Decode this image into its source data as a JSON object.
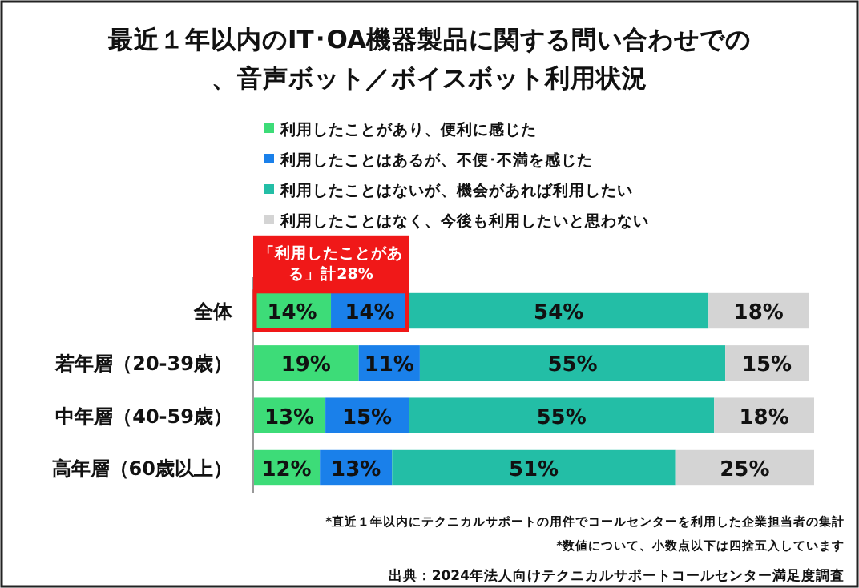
{
  "chart_data": {
    "type": "bar",
    "orientation": "horizontal",
    "stacked": true,
    "title": "最近１年以内のIT･OA機器製品に関する問い合わせでの、音声ボット／ボイスボット利用状況",
    "categories": [
      "全体",
      "若年層（20-39歳）",
      "中年層（40-59歳）",
      "高年層（60歳以上）"
    ],
    "series": [
      {
        "name": "利用したことがあり、便利に感じた",
        "color": "#3ddc78",
        "values": [
          14,
          19,
          13,
          12
        ],
        "value_labels": [
          "14%",
          "19%",
          "13%",
          "12%"
        ]
      },
      {
        "name": "利用したことはあるが、不便･不満を感じた",
        "color": "#1a80ea",
        "values": [
          14,
          11,
          15,
          13
        ],
        "value_labels": [
          "14%",
          "11%",
          "15%",
          "13%"
        ]
      },
      {
        "name": "利用したことはないが、機会があれば利用したい",
        "color": "#23bea6",
        "values": [
          54,
          55,
          55,
          51
        ],
        "value_labels": [
          "54%",
          "55%",
          "55%",
          "51%"
        ]
      },
      {
        "name": "利用したことはなく、今後も利用したいと思わない",
        "color": "#d4d4d4",
        "values": [
          18,
          15,
          18,
          25
        ],
        "value_labels": [
          "18%",
          "15%",
          "18%",
          "25%"
        ]
      }
    ],
    "xlim": [
      0,
      101
    ],
    "legend": "top",
    "tick_labels": "y",
    "annotations": [
      {
        "text": "「利用したことがある」計28%",
        "x": 28,
        "y": "全体"
      },
      "*直近１年以内にテクニカルサポートの用件でコールセンターを利用した企業担当者の集計",
      "*数値について、小数点以下は四捨五入しています",
      "出典：2024年法人向けテクニカルサポートコールセンター満足度調査"
    ]
  }
}
